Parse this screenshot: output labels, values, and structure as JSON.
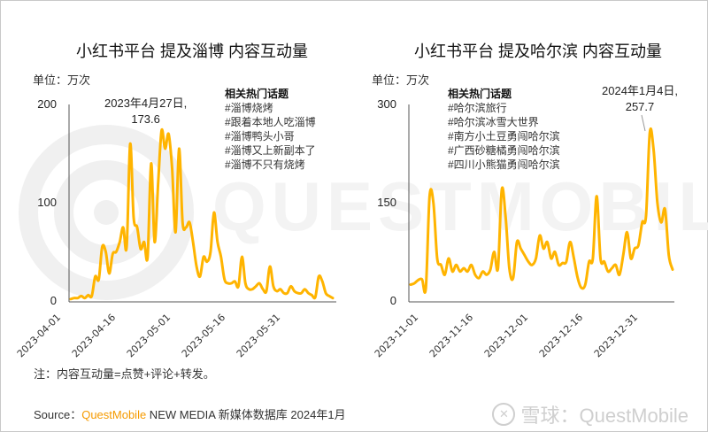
{
  "watermark": {
    "text": "QUESTMOBILE"
  },
  "charts": [
    {
      "title": "小红书平台 提及淄博 内容互动量",
      "unit_label": "单位：万次",
      "y_ticks": [
        "200",
        "100",
        "0"
      ],
      "x_ticks": [
        "2023-04-01",
        "2023-04-16",
        "2023-05-01",
        "2023-05-16",
        "2023-05-31"
      ],
      "annotation": {
        "line1": "2023年4月27日,",
        "line2": "173.6"
      },
      "topics": {
        "header": "相关热门话题",
        "items": [
          "#淄博烧烤",
          "#跟着本地人吃淄博",
          "#淄博鸭头小哥",
          "#淄博又上新副本了",
          "#淄博不只有烧烤"
        ]
      }
    },
    {
      "title": "小红书平台 提及哈尔滨 内容互动量",
      "unit_label": "单位：万次",
      "y_ticks": [
        "300",
        "150",
        "0"
      ],
      "x_ticks": [
        "2023-11-01",
        "2023-11-16",
        "2023-12-01",
        "2023-12-16",
        "2023-12-31"
      ],
      "annotation": {
        "line1": "2024年1月4日,",
        "line2": "257.7"
      },
      "topics": {
        "header": "相关热门话题",
        "items": [
          "#哈尔滨旅行",
          "#哈尔滨冰雪大世界",
          "#南方小土豆勇闯哈尔滨",
          "#广西砂糖橘勇闯哈尔滨",
          "#四川小熊猫勇闯哈尔滨"
        ]
      }
    }
  ],
  "footer": {
    "note": "注：内容互动量=点赞+评论+转发。",
    "source_prefix": "Source：",
    "source_brand": "QuestMobile",
    "source_rest": " NEW MEDIA 新媒体数据库 2024年1月",
    "logo_icon": "snowball-icon",
    "logo_text": "雪球：QuestMobile"
  },
  "colors": {
    "line": "#FFB400",
    "axis": "#555555",
    "brand": "#F59A00"
  },
  "chart_data": [
    {
      "type": "line",
      "title": "小红书平台 提及淄博 内容互动量",
      "ylabel": "单位：万次",
      "xlabel": "",
      "ylim": [
        0,
        200
      ],
      "grid": false,
      "x_start": "2023-04-01",
      "x_ticks": [
        "2023-04-01",
        "2023-04-16",
        "2023-05-01",
        "2023-05-16",
        "2023-05-31"
      ],
      "peak": {
        "date": "2023-04-27",
        "value": 173.6
      },
      "series": [
        {
          "name": "淄博 内容互动量",
          "values": [
            2,
            3,
            3,
            5,
            3,
            6,
            5,
            25,
            22,
            55,
            50,
            28,
            48,
            50,
            60,
            75,
            55,
            160,
            85,
            75,
            53,
            60,
            45,
            140,
            60,
            120,
            173.6,
            155,
            170,
            135,
            70,
            155,
            80,
            75,
            80,
            60,
            35,
            25,
            45,
            40,
            50,
            90,
            60,
            45,
            22,
            18,
            18,
            20,
            15,
            45,
            18,
            12,
            12,
            15,
            18,
            12,
            10,
            35,
            15,
            10,
            12,
            8,
            8,
            15,
            10,
            8,
            8,
            12,
            8,
            6,
            4,
            25,
            20,
            8,
            5,
            3
          ]
        }
      ]
    },
    {
      "type": "line",
      "title": "小红书平台 提及哈尔滨 内容互动量",
      "ylabel": "单位：万次",
      "xlabel": "",
      "ylim": [
        0,
        300
      ],
      "grid": false,
      "x_start": "2023-11-01",
      "x_ticks": [
        "2023-11-01",
        "2023-11-16",
        "2023-12-01",
        "2023-12-16",
        "2023-12-31"
      ],
      "peak": {
        "date": "2024-01-04",
        "value": 257.7
      },
      "series": [
        {
          "name": "哈尔滨 内容互动量",
          "values": [
            25,
            27,
            32,
            33,
            20,
            160,
            150,
            65,
            55,
            40,
            65,
            45,
            55,
            45,
            50,
            45,
            55,
            40,
            35,
            45,
            40,
            48,
            75,
            50,
            170,
            130,
            50,
            35,
            90,
            80,
            70,
            60,
            55,
            65,
            100,
            80,
            90,
            65,
            75,
            55,
            58,
            60,
            90,
            65,
            35,
            20,
            25,
            60,
            65,
            160,
            65,
            60,
            45,
            50,
            55,
            40,
            70,
            105,
            65,
            80,
            85,
            120,
            130,
            257.7,
            230,
            150,
            120,
            140,
            70,
            48
          ]
        }
      ]
    }
  ]
}
